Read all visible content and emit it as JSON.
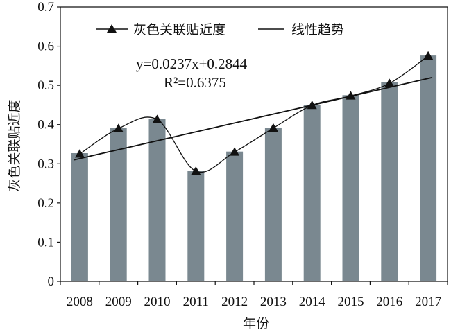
{
  "chart_data": {
    "type": "bar",
    "categories": [
      "2008",
      "2009",
      "2010",
      "2011",
      "2012",
      "2013",
      "2014",
      "2015",
      "2016",
      "2017"
    ],
    "series": [
      {
        "name": "灰色关联贴近度",
        "values": [
          0.327,
          0.392,
          0.415,
          0.281,
          0.331,
          0.392,
          0.45,
          0.475,
          0.508,
          0.576
        ],
        "color": "#7a8890"
      }
    ],
    "marker_line": {
      "values": [
        0.325,
        0.39,
        0.413,
        0.281,
        0.33,
        0.391,
        0.449,
        0.473,
        0.505,
        0.575
      ],
      "color": "#111111"
    },
    "trend_line": {
      "name": "线性趋势",
      "start": 0.31,
      "end": 0.52,
      "equation": "y=0.0237x+0.2844",
      "r_squared": "R²=0.6375"
    },
    "xlabel": "年份",
    "ylabel": "灰色关联贴近度",
    "ylim": [
      0,
      0.7
    ],
    "yticks": [
      0,
      0.1,
      0.2,
      0.3,
      0.4,
      0.5,
      0.6,
      0.7
    ],
    "ytick_labels": [
      "0",
      "0.1",
      "0.2",
      "0.3",
      "0.4",
      "0.5",
      "0.6",
      "0.7"
    ],
    "grid": false,
    "legend": "top"
  }
}
